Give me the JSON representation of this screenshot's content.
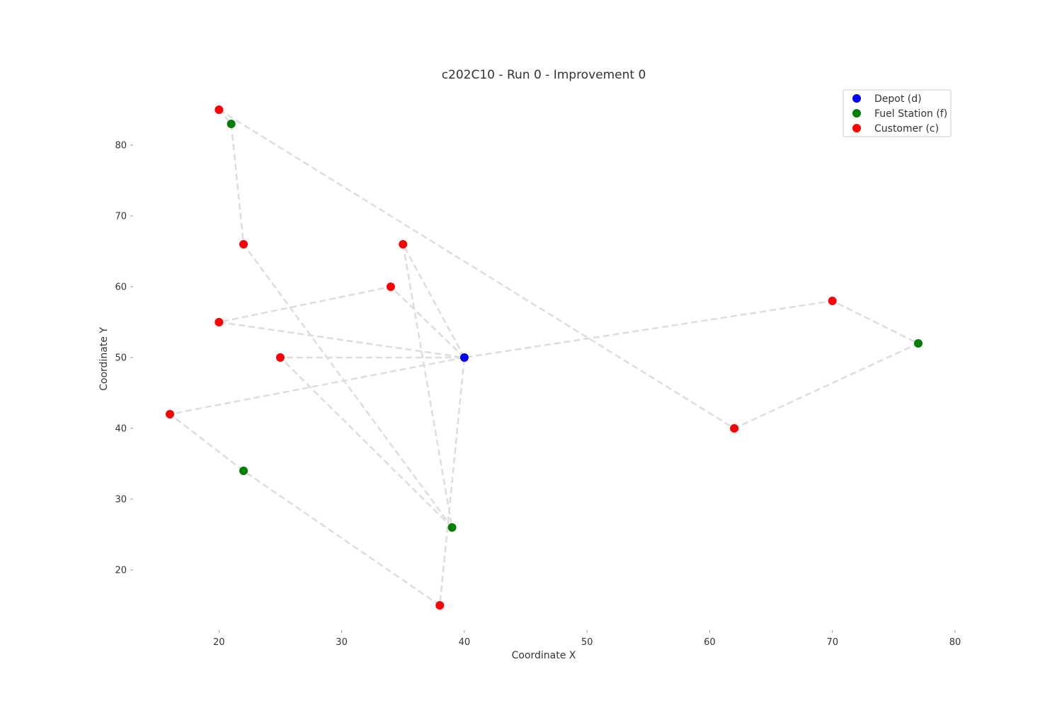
{
  "chart_data": {
    "type": "scatter",
    "title": "c202C10 - Run 0 - Improvement 0",
    "xlabel": "Coordinate X",
    "ylabel": "Coordinate Y",
    "xlim": [
      13,
      80
    ],
    "ylim": [
      11.5,
      88.5
    ],
    "x_ticks": [
      "20",
      "30",
      "40",
      "50",
      "60",
      "70",
      "80"
    ],
    "y_ticks": [
      "20",
      "30",
      "40",
      "50",
      "60",
      "70",
      "80"
    ],
    "grid": false,
    "legend_position": "top-right",
    "series": [
      {
        "name": "Depot (d)",
        "color": "#0000ff",
        "points": [
          [
            40,
            50
          ]
        ]
      },
      {
        "name": "Fuel Station (f)",
        "color": "#008000",
        "points": [
          [
            21,
            83
          ],
          [
            77,
            52
          ],
          [
            22,
            34
          ],
          [
            39,
            26
          ]
        ]
      },
      {
        "name": "Customer (c)",
        "color": "#ff0000",
        "points": [
          [
            20,
            85
          ],
          [
            22,
            66
          ],
          [
            35,
            66
          ],
          [
            34,
            60
          ],
          [
            20,
            55
          ],
          [
            25,
            50
          ],
          [
            70,
            58
          ],
          [
            16,
            42
          ],
          [
            62,
            40
          ],
          [
            38,
            15
          ]
        ]
      }
    ],
    "route_color": "#dddddd",
    "routes": [
      [
        [
          20,
          85
        ],
        [
          62,
          40
        ],
        [
          77,
          52
        ],
        [
          70,
          58
        ],
        [
          40,
          50
        ]
      ],
      [
        [
          40,
          50
        ],
        [
          35,
          66
        ],
        [
          39,
          26
        ],
        [
          25,
          50
        ],
        [
          40,
          50
        ]
      ],
      [
        [
          40,
          50
        ],
        [
          34,
          60
        ],
        [
          20,
          55
        ],
        [
          40,
          50
        ]
      ],
      [
        [
          40,
          50
        ],
        [
          16,
          42
        ],
        [
          22,
          34
        ],
        [
          38,
          15
        ],
        [
          40,
          50
        ]
      ],
      [
        [
          39,
          26
        ],
        [
          22,
          66
        ],
        [
          21,
          83
        ],
        [
          20,
          85
        ]
      ]
    ]
  }
}
